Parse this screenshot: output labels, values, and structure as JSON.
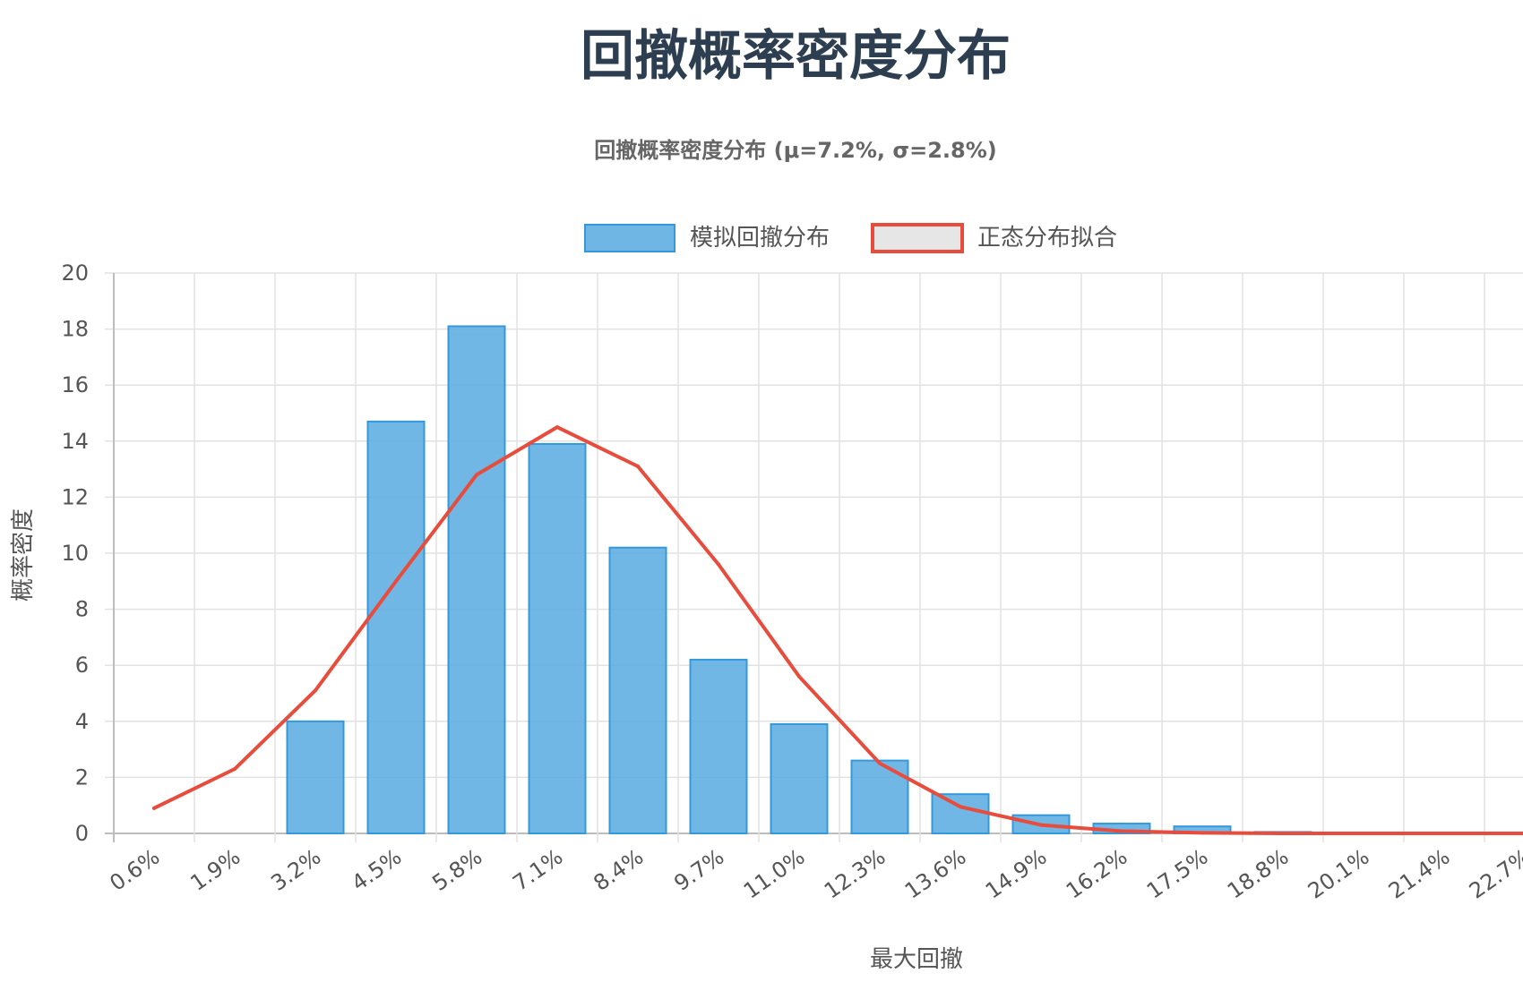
{
  "page": {
    "title": "回撤概率密度分布"
  },
  "chart_data": {
    "type": "bar",
    "title": "回撤概率密度分布 (μ=7.2%, σ=2.8%)",
    "xlabel": "最大回撤",
    "ylabel": "概率密度",
    "ylim": [
      0,
      20
    ],
    "yticks": [
      0,
      2,
      4,
      6,
      8,
      10,
      12,
      14,
      16,
      18,
      20
    ],
    "grid": true,
    "legend_position": "top",
    "categories": [
      "0.6%",
      "1.9%",
      "3.2%",
      "4.5%",
      "5.8%",
      "7.1%",
      "8.4%",
      "9.7%",
      "11.0%",
      "12.3%",
      "13.6%",
      "14.9%",
      "16.2%",
      "17.5%",
      "18.8%",
      "20.1%",
      "21.4%",
      "22.7%"
    ],
    "series": [
      {
        "name": "模拟回撤分布",
        "type": "bar",
        "color": "#5dade2",
        "border_color": "#3498db",
        "values": [
          0,
          0,
          4.0,
          14.7,
          18.1,
          13.9,
          10.2,
          6.2,
          3.9,
          2.6,
          1.4,
          0.65,
          0.35,
          0.25,
          0.05,
          0,
          0,
          0
        ]
      },
      {
        "name": "正态分布拟合",
        "type": "line",
        "color": "#e74c3c",
        "values": [
          0.9,
          2.3,
          5.1,
          9.0,
          12.8,
          14.5,
          13.1,
          9.6,
          5.6,
          2.5,
          0.95,
          0.3,
          0.08,
          0.02,
          0.0,
          0.0,
          0.0,
          0.0
        ]
      }
    ]
  }
}
